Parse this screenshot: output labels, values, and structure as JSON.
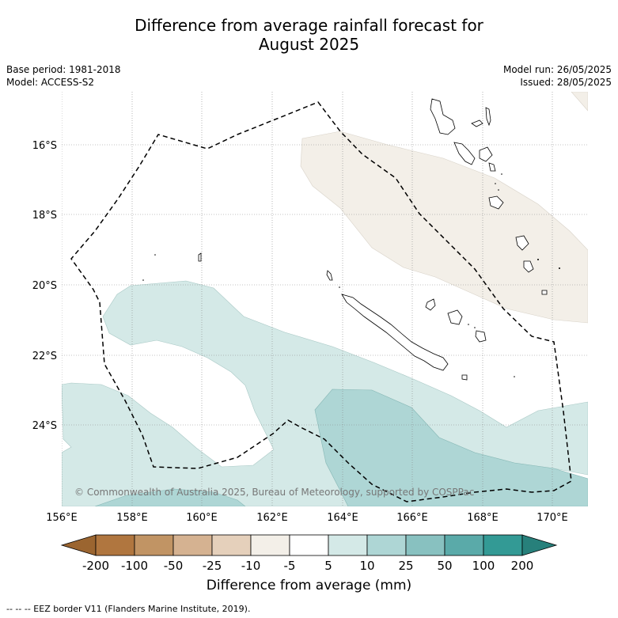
{
  "title": {
    "line1": "Difference from average rainfall forecast for",
    "line2": "August 2025"
  },
  "meta": {
    "base_period": "Base period: 1981-2018",
    "model": "Model: ACCESS-S2",
    "model_run": "Model run: 26/05/2025",
    "issued": "Issued: 28/05/2025"
  },
  "map": {
    "lat_labels": [
      "16°S",
      "18°S",
      "20°S",
      "22°S",
      "24°S"
    ],
    "lon_labels": [
      "156°E",
      "158°E",
      "160°E",
      "162°E",
      "164°E",
      "166°E",
      "168°E",
      "170°E"
    ],
    "extent": {
      "lon": [
        156,
        171
      ],
      "lat": [
        -26.3,
        -14.3
      ]
    },
    "copyright": "© Commonwealth of Australia 2025, Bureau of Meteorology, supported by COSPPac",
    "colors": {
      "light_tan": "#f3efe8",
      "light_teal": "#d4e9e7",
      "mid_teal": "#aed6d5",
      "eez_line": "#000000"
    }
  },
  "colorbar": {
    "ticks": [
      "-200",
      "-100",
      "-50",
      "-25",
      "-10",
      "-5",
      "5",
      "10",
      "25",
      "50",
      "100",
      "200"
    ],
    "colors": [
      "#9b6530",
      "#b0763f",
      "#c19464",
      "#d5b291",
      "#e5d0bb",
      "#f3efe8",
      "#ffffff",
      "#d4e9e7",
      "#aed6d5",
      "#88c1c0",
      "#5aaaa9",
      "#339a95",
      "#27807b"
    ],
    "label": "Difference from average (mm)"
  },
  "footnote": "--  --  -- EEZ border V11 (Flanders Marine Institute, 2019)."
}
